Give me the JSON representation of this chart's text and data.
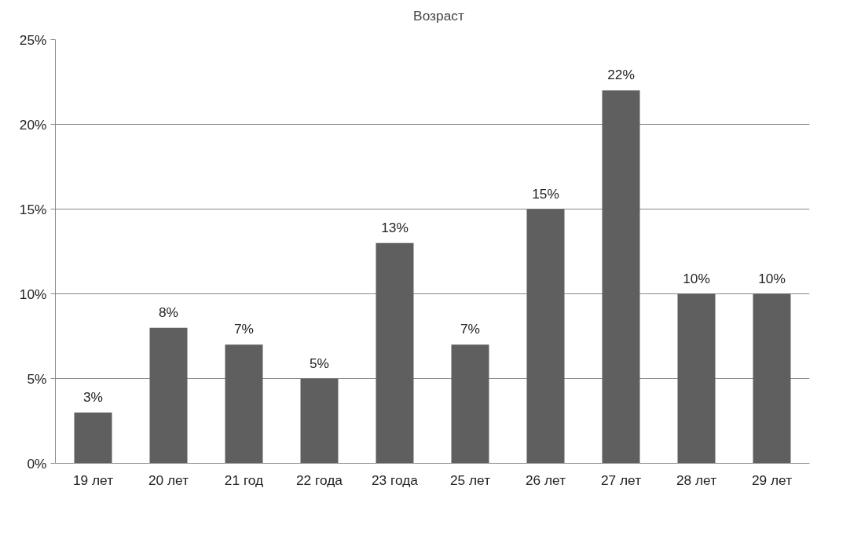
{
  "chart_data": {
    "type": "bar",
    "categories": [
      "19 лет",
      "20 лет",
      "21 год",
      "22 года",
      "23 года",
      "25 лет",
      "26 лет",
      "27 лет",
      "28 лет",
      "29 лет"
    ],
    "series": [
      {
        "name": "Возраст",
        "color": "#5f5f5f",
        "values": [
          3,
          8,
          7,
          5,
          13,
          7,
          15,
          22,
          10,
          10
        ],
        "value_labels": [
          "3%",
          "8%",
          "7%",
          "5%",
          "13%",
          "7%",
          "15%",
          "22%",
          "10%",
          "10%"
        ]
      }
    ],
    "ylim": [
      0,
      25
    ],
    "yticks": [
      {
        "value": 0,
        "label": "0%"
      },
      {
        "value": 5,
        "label": "5%"
      },
      {
        "value": 10,
        "label": "10%"
      },
      {
        "value": 15,
        "label": "15%"
      },
      {
        "value": 20,
        "label": "20%"
      },
      {
        "value": 25,
        "label": "25%"
      }
    ],
    "grid": "y",
    "legend": "top"
  }
}
